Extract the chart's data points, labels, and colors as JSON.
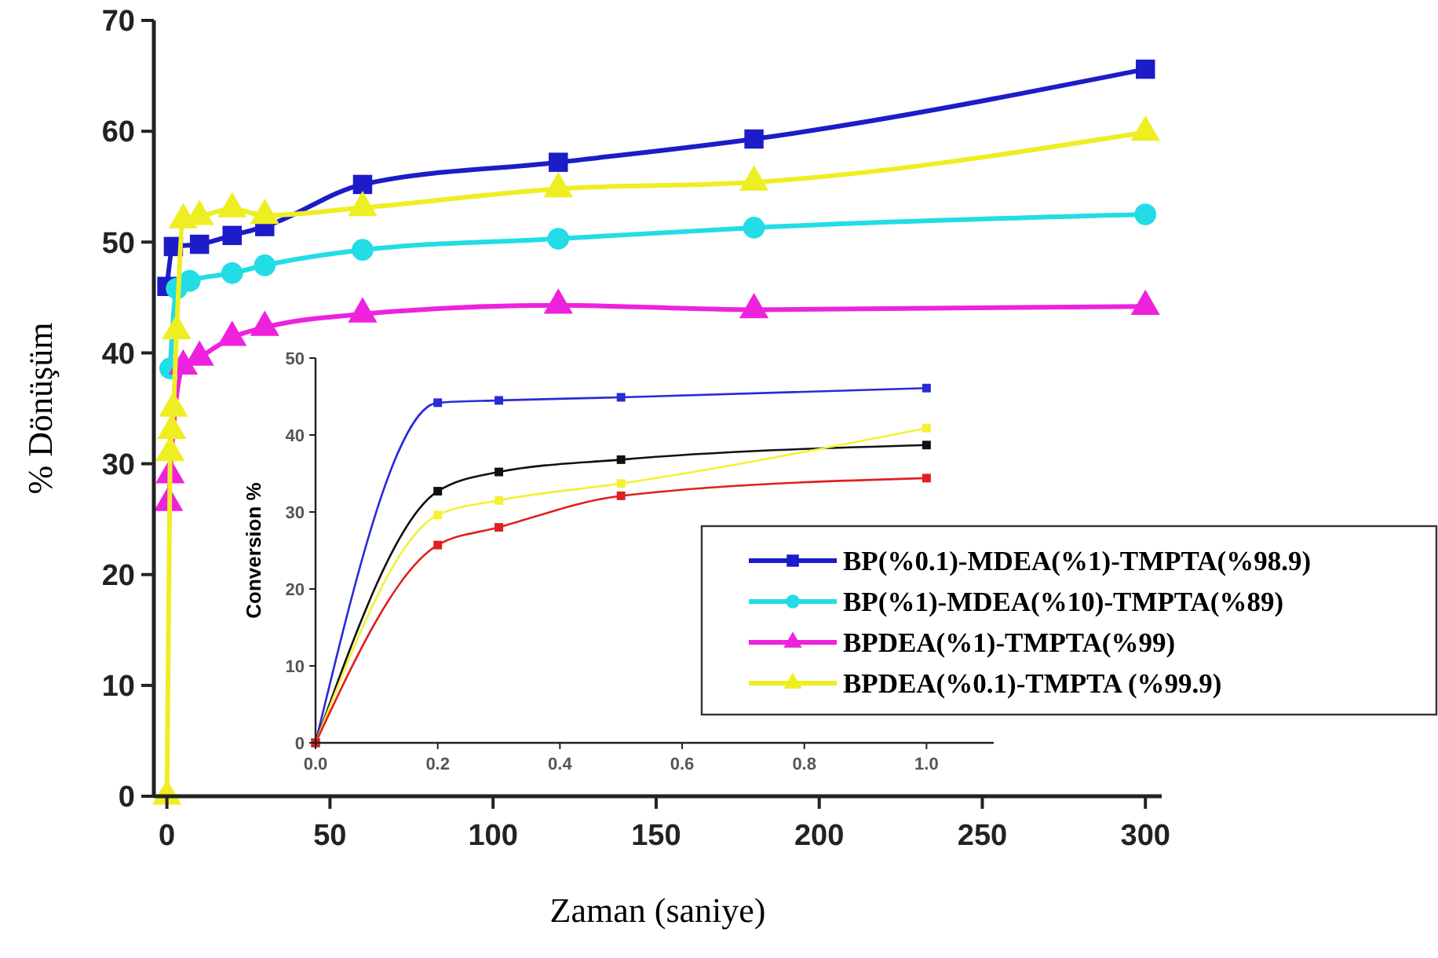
{
  "chart_data": [
    {
      "type": "line",
      "xlabel": "Zaman (saniye)",
      "ylabel": "% Dönüşüm",
      "xlim": [
        -4,
        305
      ],
      "ylim": [
        0,
        70
      ],
      "xticks": [
        0,
        50,
        100,
        150,
        200,
        250,
        300
      ],
      "yticks": [
        0,
        10,
        20,
        30,
        40,
        50,
        60,
        70
      ],
      "grid": false,
      "legend": "bottom right",
      "series": [
        {
          "name": "BP(%0.1)-MDEA(%1)-TMPTA(%98.9)",
          "color": "#1c1cc8",
          "marker": "square",
          "x": [
            0,
            2,
            10,
            20,
            30,
            60,
            120,
            180,
            300
          ],
          "values": [
            46,
            49.6,
            49.8,
            50.6,
            51.4,
            55.2,
            57.2,
            59.3,
            65.6
          ]
        },
        {
          "name": "BP(%1)-MDEA(%10)-TMPTA(%89)",
          "color": "#22dde6",
          "marker": "circle",
          "x": [
            1,
            3,
            7,
            20,
            30,
            60,
            120,
            180,
            300
          ],
          "values": [
            38.6,
            45.8,
            46.5,
            47.2,
            47.9,
            49.3,
            50.3,
            51.3,
            52.5
          ]
        },
        {
          "name": "BPDEA(%1)-TMPTA(%99)",
          "color": "#ee22dd",
          "marker": "triangle",
          "x": [
            0.5,
            1,
            5,
            10,
            20,
            30,
            60,
            120,
            180,
            300
          ],
          "values": [
            26.5,
            29,
            38.8,
            39.6,
            41.4,
            42.3,
            43.5,
            44.3,
            43.9,
            44.2
          ]
        },
        {
          "name": "BPDEA(%0.1)-TMPTA (%99.9)",
          "color": "#eeee22",
          "marker": "triangle",
          "x": [
            0,
            1,
            1.5,
            2,
            3,
            5,
            10,
            20,
            30,
            60,
            120,
            180,
            300
          ],
          "values": [
            0,
            31,
            33,
            35,
            42,
            52,
            52.3,
            53,
            52.4,
            53.1,
            54.8,
            55.4,
            59.9
          ]
        }
      ]
    },
    {
      "type": "line",
      "ylabel": "Conversion %",
      "xlim": [
        0,
        1.11
      ],
      "ylim": [
        0,
        50
      ],
      "xticks": [
        {
          "value": 0,
          "label": "0.0"
        },
        {
          "value": 0.2,
          "label": "0.2"
        },
        {
          "value": 0.4,
          "label": "0.4"
        },
        {
          "value": 0.6,
          "label": "0.6"
        },
        {
          "value": 0.8,
          "label": "0.8"
        },
        {
          "value": 1,
          "label": "1.0"
        }
      ],
      "yticks": [
        0,
        10,
        20,
        30,
        40,
        50
      ],
      "grid": false,
      "marker": "square",
      "series": [
        {
          "color": "#2a2ad8",
          "x": [
            0,
            0.2,
            0.3,
            0.5,
            1
          ],
          "values": [
            0,
            44.2,
            44.5,
            44.9,
            46.1
          ]
        },
        {
          "color": "#111111",
          "x": [
            0,
            0.2,
            0.3,
            0.5,
            1
          ],
          "values": [
            0,
            32.7,
            35.2,
            36.8,
            38.7
          ]
        },
        {
          "color": "#f2f230",
          "x": [
            0,
            0.2,
            0.3,
            0.5,
            1
          ],
          "values": [
            0,
            29.6,
            31.5,
            33.7,
            40.9
          ]
        },
        {
          "color": "#e02020",
          "x": [
            0,
            0.2,
            0.3,
            0.5,
            1
          ],
          "values": [
            0,
            25.7,
            28,
            32.1,
            34.4
          ]
        }
      ]
    }
  ]
}
